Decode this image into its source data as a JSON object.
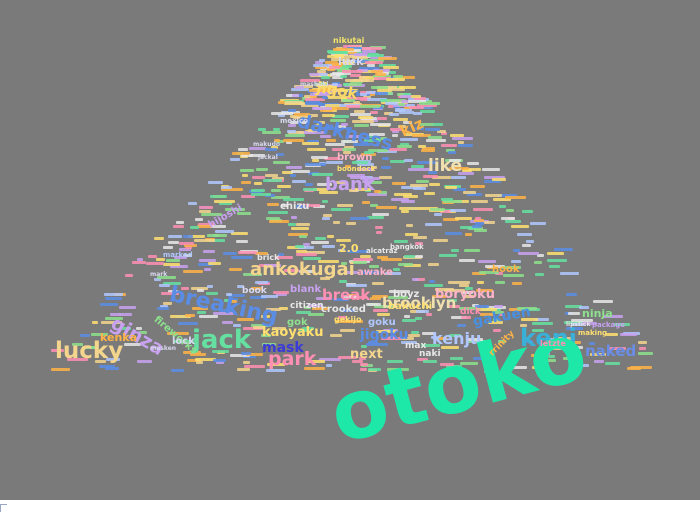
{
  "cloud": {
    "words": [
      {
        "text": "nikutai",
        "color": "#f2e36b"
      },
      {
        "text": "luck",
        "color": "#d9d9f0"
      },
      {
        "text": "jigok",
        "color": "#ffd966"
      },
      {
        "text": "darkness",
        "color": "#5b8de6"
      },
      {
        "text": "kiz",
        "color": "#ffb347"
      },
      {
        "text": "like",
        "color": "#f0e0b0"
      },
      {
        "text": "bank",
        "color": "#c8a2f0"
      },
      {
        "text": "chizu",
        "color": "#e8e8e8"
      },
      {
        "text": "breaking",
        "color": "#5b8de6"
      },
      {
        "text": "ankokugai",
        "color": "#f4d58d"
      },
      {
        "text": "ginza",
        "color": "#c8a2f0"
      },
      {
        "text": "jack",
        "color": "#66e0a0"
      },
      {
        "text": "lucky",
        "color": "#f4d58d"
      },
      {
        "text": "park",
        "color": "#ff8fb3"
      },
      {
        "text": "mask",
        "color": "#3b3bd6"
      },
      {
        "text": "kaoyaku",
        "color": "#ffe070"
      },
      {
        "text": "break",
        "color": "#ff8fb3"
      },
      {
        "text": "brooklyn",
        "color": "#f0e0b0"
      },
      {
        "text": "jigoku",
        "color": "#5b8de6"
      },
      {
        "text": "kenju",
        "color": "#b0c8ff"
      },
      {
        "text": "kenj",
        "color": "#3ab0d8"
      },
      {
        "text": "gakuen",
        "color": "#4a90e2"
      },
      {
        "text": "ninja",
        "color": "#8de08d"
      },
      {
        "text": "naked",
        "color": "#6a8de6"
      },
      {
        "text": "next",
        "color": "#f4d58d"
      },
      {
        "text": "otoko",
        "color": "#1ee8a8"
      },
      {
        "text": "boryoku",
        "color": "#ffb3c8"
      },
      {
        "text": "boyz",
        "color": "#e8e8e8"
      },
      {
        "text": "bakuchi",
        "color": "#ffe070"
      },
      {
        "text": "fireworks",
        "color": "#8de08d"
      },
      {
        "text": "kenka",
        "color": "#ffb347"
      },
      {
        "text": "lock",
        "color": "#d9d9f0"
      },
      {
        "text": "gok",
        "color": "#8de08d"
      },
      {
        "text": "citizen",
        "color": "#e8e8e8"
      },
      {
        "text": "crooked",
        "color": "#e8e8e8"
      },
      {
        "text": "blank",
        "color": "#c8a2f0"
      },
      {
        "text": "awake",
        "color": "#ffb3c8"
      },
      {
        "text": "goku",
        "color": "#b0c8ff"
      },
      {
        "text": "max",
        "color": "#e8e8e8"
      },
      {
        "text": "naki",
        "color": "#e8e8e8"
      },
      {
        "text": "book",
        "color": "#d9d9f0"
      },
      {
        "text": "hook",
        "color": "#ffb347"
      },
      {
        "text": "dick",
        "color": "#ff8fb3"
      },
      {
        "text": "letzte",
        "color": "#ff8fb3"
      },
      {
        "text": "brick",
        "color": "#e8e8e8"
      },
      {
        "text": "2.0",
        "color": "#ffe070"
      },
      {
        "text": "hijoshi",
        "color": "#c8a2f0"
      },
      {
        "text": "brown",
        "color": "#ffb3c8"
      },
      {
        "text": "gekijo",
        "color": "#ffe070"
      },
      {
        "text": "package",
        "color": "#c8a2f0"
      },
      {
        "text": "making",
        "color": "#ffe070"
      },
      {
        "text": "mashuki",
        "color": "#d9d9f0"
      },
      {
        "text": "marked",
        "color": "#b0c8ff"
      },
      {
        "text": "mexico",
        "color": "#d9d9f0"
      },
      {
        "text": "bangkok",
        "color": "#e8e8e8"
      },
      {
        "text": "alcatraz",
        "color": "#e8e8e8"
      },
      {
        "text": "boondock",
        "color": "#ffe070"
      },
      {
        "text": "jackal",
        "color": "#d9d9f0"
      },
      {
        "text": "makudo",
        "color": "#d9d9f0"
      },
      {
        "text": "rrinity",
        "color": "#ffb347"
      },
      {
        "text": "mark",
        "color": "#d9d9f0"
      },
      {
        "text": "lipstick",
        "color": "#e8e8e8"
      },
      {
        "text": "masken",
        "color": "#d9d9f0"
      }
    ],
    "colors": {
      "background": "#7a7a7a",
      "page": "#ffffff",
      "speck_palette": [
        "#f4d58d",
        "#c8a2f0",
        "#8de08d",
        "#ff8fb3",
        "#5b8de6",
        "#ffb347",
        "#e8e8e8",
        "#66e0a0",
        "#b0c8ff",
        "#ffe070"
      ]
    }
  }
}
